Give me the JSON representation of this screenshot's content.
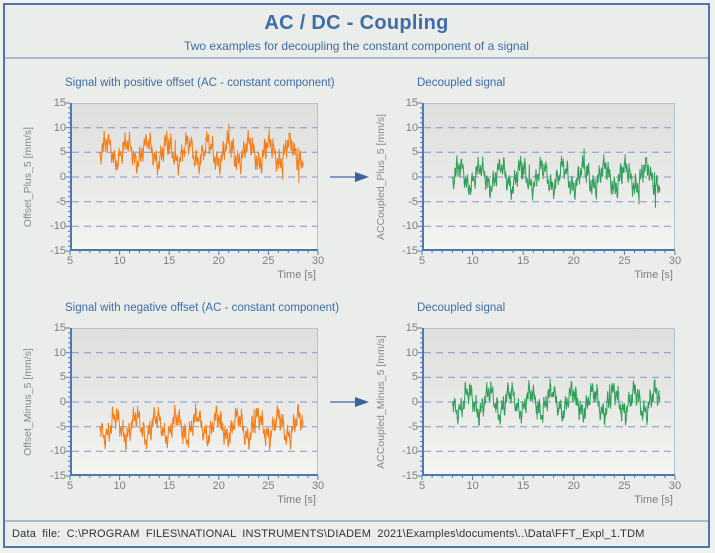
{
  "header": {
    "title": "AC / DC - Coupling",
    "subtitle": "Two examples for decoupling the constant component of a signal"
  },
  "footer": {
    "text": "Data file: C:\\PROGRAM FILES\\NATIONAL INSTRUMENTS\\DIADEM 2021\\Examples\\documents\\..\\Data\\FFT_Expl_1.TDM"
  },
  "colors": {
    "accent_blue": "#3e6da8",
    "page_border_blue": "#4e76ab",
    "divider_blue": "#a9bacf",
    "axis_blue": "#4f78ad",
    "grid_blue": "#8299c4",
    "plot_border": "#b6c1d4",
    "tick_text_gray": "#7e7e7e",
    "signal_orange": "#F57D17",
    "signal_green": "#2F9E58",
    "arrow_blue": "#3c62a0",
    "plot_bg_top": "#dddedd",
    "plot_bg_bottom": "#f4f4f1",
    "page_bg": "#eaede9"
  },
  "chart_data": [
    {
      "type": "line",
      "title": "Signal with positive offset (AC - constant component)",
      "ylabel": "Offset_Plus_5 [mm/s]",
      "xlabel": "Time [s]",
      "xlim": [
        5,
        30
      ],
      "ylim": [
        -15,
        15
      ],
      "xticks": [
        5,
        10,
        15,
        20,
        25,
        30
      ],
      "yticks": [
        15,
        10,
        5,
        0,
        -5,
        -10,
        -15
      ],
      "grid": "horizontal dashed every 5 units",
      "legend": "none",
      "color": "#F57D17",
      "signal": {
        "description": "noisy oscillation around +5 mm/s, dense band approx 2..8.5, spikes to approx 11 and -0.5",
        "t_start": 8.0,
        "t_end": 28.5,
        "dt": 0.02,
        "dc_offset": 5,
        "components": [
          {
            "amplitude": 2.2,
            "period_s": 2.05
          },
          {
            "amplitude": 1.15,
            "period_s": 0.52
          },
          {
            "amplitude": 0.95,
            "period_s": 0.21
          }
        ],
        "noise_amplitude": 0.85,
        "spike_probability": 0.006,
        "spike_extra": 1.8,
        "seed": 7
      }
    },
    {
      "type": "line",
      "title": "Decoupled signal",
      "ylabel": "ACCoupled_Plus_5 [mm/s]",
      "xlabel": "Time [s]",
      "xlim": [
        5,
        30
      ],
      "ylim": [
        -15,
        15
      ],
      "xticks": [
        5,
        10,
        15,
        20,
        25,
        30
      ],
      "yticks": [
        15,
        10,
        5,
        0,
        -5,
        -10,
        -15
      ],
      "grid": "horizontal dashed every 5 units",
      "legend": "none",
      "color": "#2F9E58",
      "signal": {
        "description": "same AC waveform as positive-offset signal with DC component removed, oscillates around 0, spikes to approx +6 / -5.5",
        "t_start": 8.0,
        "t_end": 28.5,
        "dt": 0.02,
        "dc_offset": 0,
        "components": [
          {
            "amplitude": 2.2,
            "period_s": 2.05
          },
          {
            "amplitude": 1.15,
            "period_s": 0.52
          },
          {
            "amplitude": 0.95,
            "period_s": 0.21
          }
        ],
        "noise_amplitude": 0.85,
        "spike_probability": 0.006,
        "spike_extra": 1.8,
        "seed": 7
      }
    },
    {
      "type": "line",
      "title": "Signal with negative offset (AC - constant component)",
      "ylabel": "Offset_Minus_5 [mm/s]",
      "xlabel": "Time [s]",
      "xlim": [
        5,
        30
      ],
      "ylim": [
        -15,
        15
      ],
      "xticks": [
        5,
        10,
        15,
        20,
        25,
        30
      ],
      "yticks": [
        15,
        10,
        5,
        0,
        -5,
        -10,
        -15
      ],
      "grid": "horizontal dashed every 5 units",
      "legend": "none",
      "color": "#F57D17",
      "signal": {
        "description": "noisy oscillation around -5 mm/s, dense band approx -8.5..-2, spikes to approx +1 and -11",
        "t_start": 8.0,
        "t_end": 28.5,
        "dt": 0.02,
        "dc_offset": -5,
        "components": [
          {
            "amplitude": 2.2,
            "period_s": 2.05
          },
          {
            "amplitude": 1.15,
            "period_s": 0.52
          },
          {
            "amplitude": 0.95,
            "period_s": 0.21
          }
        ],
        "noise_amplitude": 0.85,
        "spike_probability": 0.006,
        "spike_extra": 1.8,
        "seed": 13
      }
    },
    {
      "type": "line",
      "title": "Decoupled signal",
      "ylabel": "ACCoupled_Minus_5 [mm/s]",
      "xlabel": "Time [s]",
      "xlim": [
        5,
        30
      ],
      "ylim": [
        -15,
        15
      ],
      "xticks": [
        5,
        10,
        15,
        20,
        25,
        30
      ],
      "yticks": [
        15,
        10,
        5,
        0,
        -5,
        -10,
        -15
      ],
      "grid": "horizontal dashed every 5 units",
      "legend": "none",
      "color": "#2F9E58",
      "signal": {
        "description": "same AC waveform as negative-offset signal with DC component removed, oscillates around 0, spikes to approx +6 / -5.5",
        "t_start": 8.0,
        "t_end": 28.5,
        "dt": 0.02,
        "dc_offset": 0,
        "components": [
          {
            "amplitude": 2.2,
            "period_s": 2.05
          },
          {
            "amplitude": 1.15,
            "period_s": 0.52
          },
          {
            "amplitude": 0.95,
            "period_s": 0.21
          }
        ],
        "noise_amplitude": 0.85,
        "spike_probability": 0.006,
        "spike_extra": 1.8,
        "seed": 13
      }
    }
  ]
}
